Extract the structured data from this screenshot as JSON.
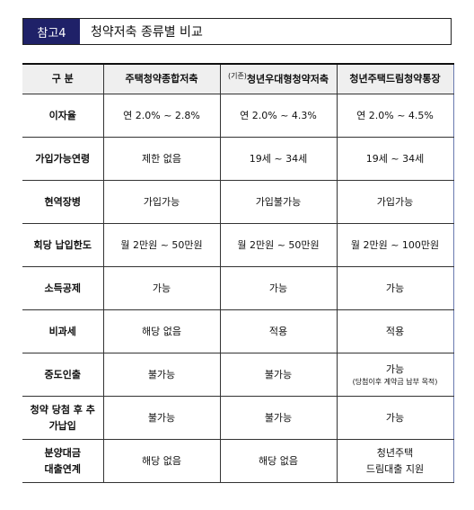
{
  "header": {
    "badge": "참고4",
    "title": "청약저축 종류별 비교"
  },
  "table": {
    "columns": [
      "구  분",
      "주택청약종합저축",
      {
        "prefix": "(기존)",
        "text": "청년우대형청약저축"
      },
      "청년주택드림청약통장"
    ],
    "rows": [
      [
        "이자율",
        "연 2.0% ~ 2.8%",
        "연 2.0% ~ 4.3%",
        "연 2.0% ~ 4.5%"
      ],
      [
        "가입가능연령",
        "제한 없음",
        "19세 ~ 34세",
        "19세 ~ 34세"
      ],
      [
        "현역장병",
        "가입가능",
        "가입불가능",
        "가입가능"
      ],
      [
        "회당 납입한도",
        "월 2만원 ~ 50만원",
        "월 2만원 ~ 50만원",
        "월 2만원 ~ 100만원"
      ],
      [
        "소득공제",
        "가능",
        "가능",
        "가능"
      ],
      [
        "비과세",
        "해당 없음",
        "적용",
        "적용"
      ],
      [
        "중도인출",
        "불가능",
        "불가능",
        {
          "text": "가능",
          "note": "(당첨이후 계약금 납부 목적)"
        }
      ],
      [
        [
          "청약 당첨 후 추",
          "가납입"
        ],
        "불가능",
        "불가능",
        "가능"
      ],
      [
        [
          "분양대금",
          "대출연계"
        ],
        "해당 없음",
        "해당 없음",
        [
          "청년주택",
          "드림대출 지원"
        ]
      ]
    ]
  }
}
